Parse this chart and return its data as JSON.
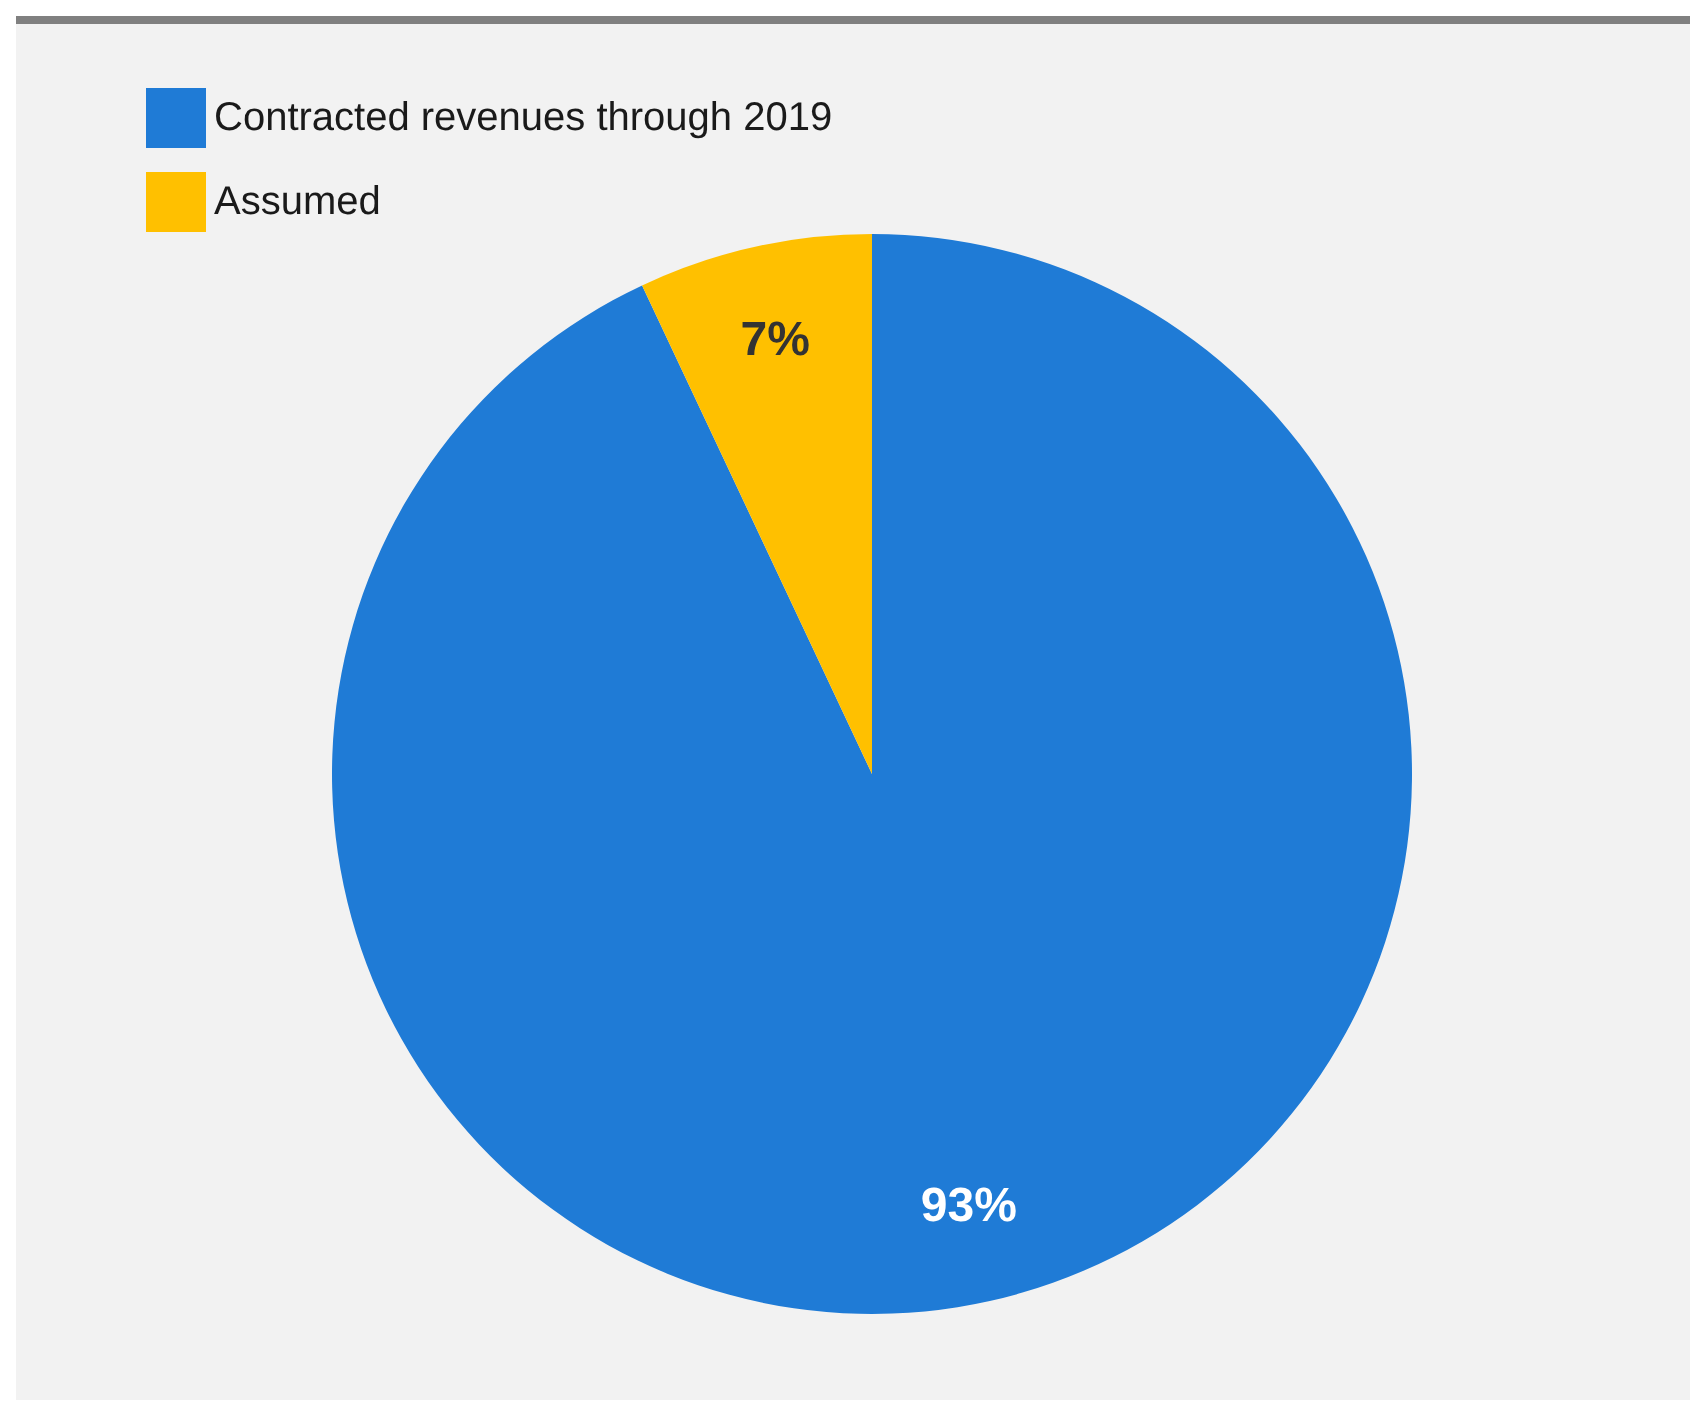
{
  "chart_data": {
    "type": "pie",
    "categories": [
      "Contracted revenues through 2019",
      "Assumed"
    ],
    "values": [
      93,
      7
    ],
    "colors": [
      "#1f7bd6",
      "#ffc000"
    ],
    "value_labels": [
      "93%",
      "7%"
    ],
    "legend": "top left"
  }
}
